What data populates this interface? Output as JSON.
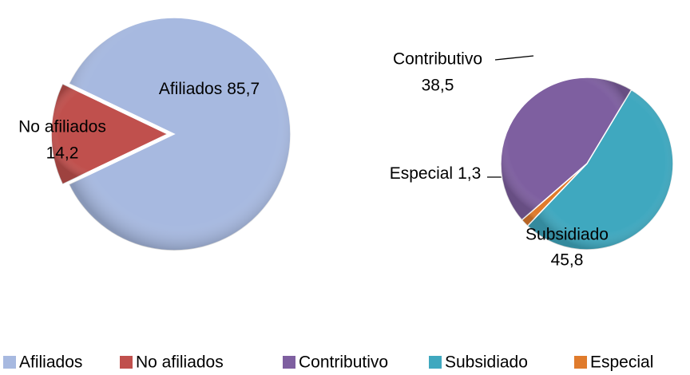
{
  "chart_data": [
    {
      "type": "pie",
      "categories": [
        "Afiliados",
        "No afiliados"
      ],
      "values": [
        85.7,
        14.2
      ],
      "value_labels": [
        "85,7",
        "14,2"
      ],
      "colors": [
        "#a7b9e0",
        "#c0504d"
      ]
    },
    {
      "type": "pie",
      "categories": [
        "Contributivo",
        "Subsidiado",
        "Especial"
      ],
      "values": [
        38.5,
        45.8,
        1.3
      ],
      "value_labels": [
        "38,5",
        "45,8",
        "1,3"
      ],
      "colors": [
        "#7e5fa0",
        "#3fa8bf",
        "#e07b2c"
      ]
    }
  ]
}
